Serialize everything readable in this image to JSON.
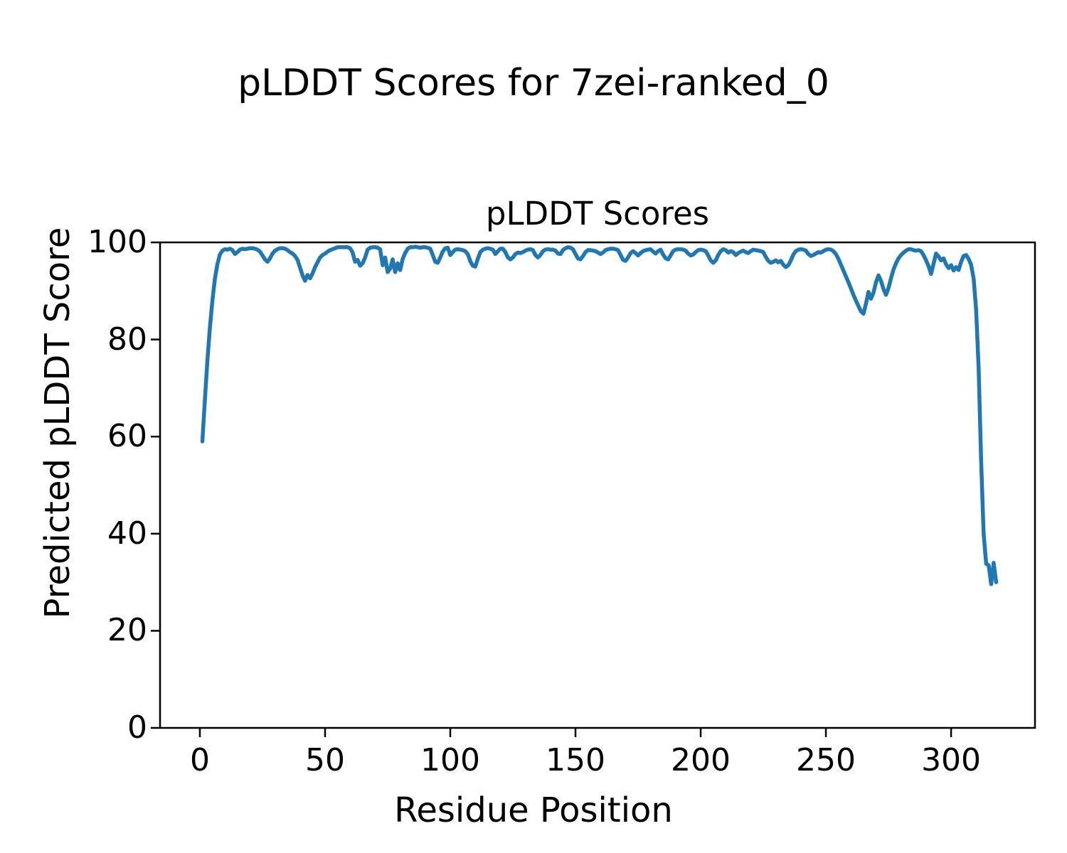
{
  "figure": {
    "suptitle": "pLDDT Scores for 7zei-ranked_0"
  },
  "chart_data": {
    "type": "line",
    "title": "pLDDT Scores",
    "xlabel": "Residue Position",
    "ylabel": "Predicted pLDDT Score",
    "xlim": [
      -15.9,
      333.5
    ],
    "ylim": [
      0,
      100
    ],
    "xticks": [
      0,
      50,
      100,
      150,
      200,
      250,
      300
    ],
    "yticks": [
      0,
      20,
      40,
      60,
      80,
      100
    ],
    "grid": false,
    "legend": "none",
    "line_color": "#1f77b4",
    "axis_color": "#000000",
    "series": [
      {
        "name": "pLDDT",
        "x_start": 1,
        "x_step": 1,
        "values": [
          59.0,
          67.5,
          75.5,
          82.5,
          88.0,
          92.5,
          95.5,
          97.5,
          98.3,
          98.6,
          98.5,
          98.7,
          98.4,
          97.6,
          98.0,
          98.5,
          98.7,
          98.6,
          98.7,
          98.8,
          98.8,
          98.7,
          98.5,
          98.1,
          97.3,
          96.5,
          96.0,
          96.7,
          97.7,
          98.3,
          98.6,
          98.8,
          98.8,
          98.7,
          98.4,
          98.0,
          97.7,
          97.2,
          96.4,
          94.8,
          93.2,
          92.1,
          93.3,
          92.6,
          93.6,
          94.9,
          95.9,
          96.9,
          97.4,
          97.7,
          98.1,
          98.4,
          98.6,
          98.8,
          99.0,
          99.0,
          99.0,
          99.0,
          99.0,
          98.8,
          97.9,
          96.0,
          96.4,
          95.2,
          95.7,
          96.9,
          98.5,
          98.9,
          99.0,
          99.0,
          98.9,
          98.6,
          95.3,
          96.9,
          93.9,
          94.6,
          96.5,
          93.9,
          95.7,
          94.3,
          96.6,
          97.8,
          98.7,
          99.0,
          99.0,
          99.1,
          99.0,
          98.9,
          99.0,
          99.0,
          98.9,
          98.7,
          97.4,
          96.0,
          95.8,
          96.9,
          98.1,
          98.8,
          98.9,
          97.4,
          98.0,
          98.5,
          98.6,
          98.5,
          98.4,
          98.2,
          97.6,
          96.1,
          95.2,
          95.0,
          96.6,
          98.0,
          98.5,
          98.7,
          98.8,
          98.7,
          98.5,
          97.6,
          98.2,
          98.7,
          98.7,
          98.0,
          96.9,
          96.5,
          96.9,
          97.6,
          97.9,
          97.8,
          98.0,
          98.3,
          98.5,
          98.6,
          98.4,
          97.4,
          96.9,
          97.4,
          98.2,
          98.5,
          98.6,
          98.5,
          98.5,
          98.3,
          97.7,
          97.6,
          98.4,
          98.8,
          99.0,
          98.9,
          98.6,
          97.6,
          96.7,
          96.5,
          97.2,
          98.0,
          98.4,
          98.4,
          98.3,
          98.2,
          97.9,
          97.6,
          97.9,
          98.4,
          98.6,
          98.7,
          98.7,
          98.6,
          98.4,
          97.4,
          96.4,
          96.2,
          96.9,
          97.8,
          98.2,
          97.8,
          97.3,
          97.8,
          98.2,
          98.4,
          98.5,
          98.6,
          98.1,
          97.7,
          98.2,
          98.5,
          97.5,
          96.7,
          96.5,
          97.3,
          98.2,
          98.5,
          98.6,
          98.6,
          98.5,
          98.3,
          97.7,
          97.3,
          97.5,
          98.0,
          98.4,
          98.5,
          98.4,
          98.2,
          97.3,
          96.3,
          95.8,
          96.3,
          97.4,
          98.2,
          98.6,
          98.4,
          97.9,
          98.2,
          98.0,
          97.4,
          97.8,
          98.1,
          98.3,
          98.0,
          97.8,
          98.2,
          98.5,
          98.4,
          98.3,
          98.2,
          98.0,
          97.0,
          96.2,
          95.8,
          96.0,
          96.3,
          95.9,
          96.2,
          95.4,
          94.9,
          95.3,
          96.3,
          97.5,
          98.2,
          98.5,
          98.6,
          98.5,
          98.3,
          97.6,
          97.2,
          97.4,
          97.7,
          98.0,
          97.9,
          98.2,
          98.5,
          98.6,
          98.5,
          98.2,
          97.6,
          96.6,
          95.4,
          94.2,
          93.0,
          91.8,
          90.5,
          89.2,
          88.0,
          86.9,
          85.8,
          85.3,
          87.4,
          89.8,
          88.4,
          89.6,
          91.8,
          93.2,
          92.1,
          90.4,
          89.2,
          90.6,
          92.6,
          94.4,
          95.7,
          96.7,
          97.4,
          97.9,
          98.3,
          98.6,
          98.6,
          98.4,
          98.3,
          98.4,
          98.2,
          97.4,
          96.3,
          95.1,
          93.5,
          95.6,
          97.7,
          97.1,
          96.3,
          96.7,
          95.5,
          94.7,
          95.3,
          94.2,
          94.9,
          94.3,
          96.0,
          97.2,
          97.4,
          96.6,
          95.4,
          92.5,
          86.0,
          74.0,
          55.0,
          40.0,
          33.8,
          33.5,
          29.6,
          34.0,
          30.0
        ]
      }
    ]
  }
}
